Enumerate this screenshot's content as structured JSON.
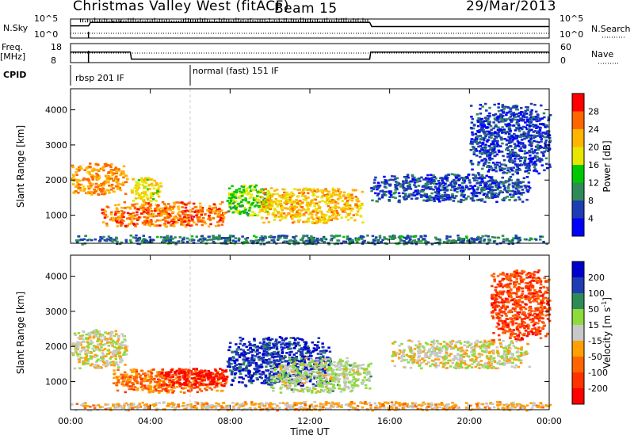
{
  "header": {
    "title": "Christmas Valley West (fitACF)",
    "beam": "Beam 15",
    "date": "29/Mar/2013"
  },
  "strips": {
    "nsky_label": "N.Sky",
    "nsky_ticks": [
      "10^5",
      "10^0"
    ],
    "nsearch_label": "N.Search",
    "nsearch_ticks": [
      "10^5",
      "10^0"
    ],
    "freq_label_1": "Freq.",
    "freq_label_2": "[MHz]",
    "freq_ticks": [
      "18",
      "8"
    ],
    "nave_label": "Nave",
    "nave_ticks": [
      "60",
      "0"
    ],
    "cpid_label": "CPID",
    "cpid_modes": [
      "rbsp 201 IF",
      "normal (fast) 151 IF"
    ]
  },
  "axes": {
    "ylabel": "Slant Range [km]",
    "yticks": [
      "4000",
      "3000",
      "2000",
      "1000"
    ],
    "xlabel": "Time UT",
    "xticks": [
      "00:00",
      "04:00",
      "08:00",
      "12:00",
      "16:00",
      "20:00",
      "00:00"
    ]
  },
  "colorbars": {
    "power": {
      "label": "Power [dB]",
      "ticks": [
        "28",
        "24",
        "20",
        "16",
        "12",
        "8",
        "4"
      ],
      "colors": [
        "#ff0000",
        "#ff6600",
        "#ffb400",
        "#e6e600",
        "#00c800",
        "#2e8b57",
        "#1e3cb4",
        "#0000ff"
      ]
    },
    "velocity": {
      "label": "Velocity [m s",
      "label_sup": "-1",
      "label_end": "]",
      "ticks": [
        "200",
        "100",
        "50",
        "15",
        "-15",
        "-50",
        "-100",
        "-200"
      ],
      "colors": [
        "#0000cc",
        "#1e3cb4",
        "#2e8b57",
        "#8cdc3c",
        "#c8c8c8",
        "#ffa000",
        "#ff6400",
        "#ff3200",
        "#ff0000"
      ]
    }
  },
  "chart_data": [
    {
      "type": "heatmap",
      "title": "",
      "xlabel": "Time UT",
      "ylabel": "Slant Range [km]",
      "xlim": [
        0,
        24
      ],
      "ylim": [
        200,
        4600
      ],
      "colorbar": "Power [dB]",
      "color_range": [
        0,
        30
      ],
      "features": [
        {
          "t": [
            0,
            2.8
          ],
          "range": [
            1600,
            2500
          ],
          "value": 22
        },
        {
          "t": [
            3.0,
            4.5
          ],
          "range": [
            1400,
            2100
          ],
          "value": 18
        },
        {
          "t": [
            1.5,
            7.8
          ],
          "range": [
            700,
            1400
          ],
          "value": 24
        },
        {
          "t": [
            7.8,
            10
          ],
          "range": [
            1000,
            1900
          ],
          "value": 14
        },
        {
          "t": [
            9.5,
            14.6
          ],
          "range": [
            800,
            1800
          ],
          "value": 20
        },
        {
          "t": [
            15,
            23
          ],
          "range": [
            1400,
            2200
          ],
          "value": 6
        },
        {
          "t": [
            20,
            24
          ],
          "range": [
            2200,
            4200
          ],
          "value": 5
        },
        {
          "t": [
            0,
            24
          ],
          "range": [
            200,
            450
          ],
          "value": 8
        }
      ]
    },
    {
      "type": "heatmap",
      "title": "",
      "xlabel": "Time UT",
      "ylabel": "Slant Range [km]",
      "xlim": [
        0,
        24
      ],
      "ylim": [
        200,
        4600
      ],
      "colorbar": "Velocity [m s-1]",
      "color_range": [
        -200,
        200
      ],
      "features": [
        {
          "t": [
            0,
            2.8
          ],
          "range": [
            1400,
            2500
          ],
          "value": 0
        },
        {
          "t": [
            2.0,
            7.8
          ],
          "range": [
            700,
            1400
          ],
          "value": -80
        },
        {
          "t": [
            4.5,
            7.8
          ],
          "range": [
            900,
            1400
          ],
          "value": -180
        },
        {
          "t": [
            7.8,
            13
          ],
          "range": [
            900,
            2300
          ],
          "value": 150
        },
        {
          "t": [
            10,
            15
          ],
          "range": [
            700,
            1700
          ],
          "value": 20
        },
        {
          "t": [
            16,
            23
          ],
          "range": [
            1400,
            2200
          ],
          "value": 0
        },
        {
          "t": [
            21,
            24
          ],
          "range": [
            2200,
            4200
          ],
          "value": -120
        },
        {
          "t": [
            0,
            24
          ],
          "range": [
            200,
            450
          ],
          "value": -30
        }
      ]
    },
    {
      "type": "line",
      "title": "",
      "series": [
        {
          "name": "N.Sky",
          "x": [
            0,
            0.9,
            1,
            15,
            15.1,
            24
          ],
          "y": [
            3.5,
            3.5,
            4.5,
            4.5,
            3.3,
            3.3
          ]
        },
        {
          "name": "Freq.",
          "x": [
            0,
            3,
            3.05,
            15,
            15.05,
            24
          ],
          "y": [
            14,
            14,
            10,
            10,
            14,
            14
          ]
        }
      ]
    }
  ]
}
